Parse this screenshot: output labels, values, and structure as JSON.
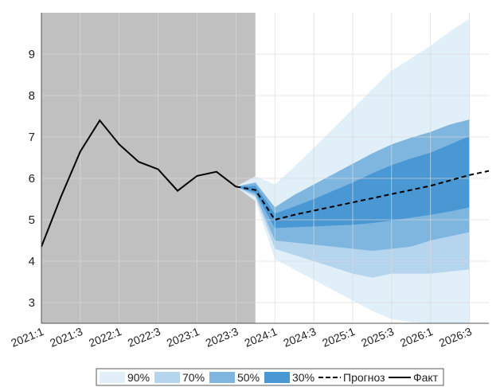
{
  "chart_data": {
    "type": "area",
    "categories": [
      "2021:1",
      "2021:2",
      "2021:3",
      "2021:4",
      "2022:1",
      "2022:2",
      "2022:3",
      "2022:4",
      "2023:1",
      "2023:2",
      "2023:3",
      "2023:4",
      "2024:1",
      "2024:2",
      "2024:3",
      "2024:4",
      "2025:1",
      "2025:2",
      "2025:3",
      "2025:4",
      "2026:1",
      "2026:2",
      "2026:3",
      "2026:4"
    ],
    "x_tick_labels": [
      "2021:1",
      "2021:3",
      "2022:1",
      "2022:3",
      "2023:1",
      "2023:3",
      "2024:1",
      "2024:3",
      "2025:1",
      "2025:3",
      "2026:1",
      "2026:3"
    ],
    "ylim": [
      2.5,
      10
    ],
    "y_ticks": [
      3,
      4,
      5,
      6,
      7,
      8,
      9
    ],
    "grid": true,
    "shaded_history_until": "2023:4",
    "series": [
      {
        "name": "Факт",
        "style": "solid",
        "values": [
          4.35,
          5.55,
          6.65,
          7.4,
          6.82,
          6.4,
          6.22,
          5.7,
          6.06,
          6.16,
          5.8,
          null,
          null,
          null,
          null,
          null,
          null,
          null,
          null,
          null,
          null,
          null,
          null,
          null
        ]
      },
      {
        "name": "Прогноз",
        "style": "dashed",
        "values": [
          null,
          null,
          null,
          null,
          null,
          null,
          null,
          null,
          null,
          null,
          5.8,
          5.72,
          5.0,
          5.12,
          5.22,
          5.32,
          5.42,
          5.52,
          5.62,
          5.72,
          5.82,
          5.95,
          6.08,
          6.18
        ]
      }
    ],
    "fan_bands": [
      {
        "name": "90%",
        "color": "#e1eff9",
        "lower": [
          5.8,
          5.45,
          4.05,
          3.8,
          3.55,
          3.3,
          3.05,
          2.8,
          2.6,
          2.53,
          2.5,
          2.5,
          2.5
        ],
        "upper": [
          5.8,
          6.05,
          5.85,
          6.28,
          6.74,
          7.2,
          7.68,
          8.15,
          8.6,
          8.9,
          9.2,
          9.55,
          9.85
        ]
      },
      {
        "name": "70%",
        "color": "#b5d5ee",
        "lower": [
          5.8,
          5.55,
          4.3,
          4.15,
          4.0,
          3.85,
          3.7,
          3.6,
          3.7,
          3.7,
          3.7,
          3.75,
          3.8
        ]
      },
      {
        "name": "50%",
        "color": "#7fb6e0",
        "lower": [
          5.8,
          5.6,
          4.5,
          4.45,
          4.4,
          4.35,
          4.3,
          4.25,
          4.3,
          4.35,
          4.5,
          4.6,
          4.7
        ],
        "upper": [
          5.8,
          5.9,
          5.3,
          5.6,
          5.85,
          6.1,
          6.35,
          6.6,
          6.82,
          6.98,
          7.12,
          7.3,
          7.42
        ]
      },
      {
        "name": "30%",
        "color": "#4a98d3",
        "lower": [
          5.8,
          5.65,
          4.8,
          4.82,
          4.84,
          4.86,
          4.88,
          4.92,
          4.98,
          5.05,
          5.12,
          5.2,
          5.3
        ],
        "upper": [
          5.8,
          5.82,
          5.15,
          5.32,
          5.5,
          5.7,
          5.9,
          6.12,
          6.32,
          6.48,
          6.62,
          6.82,
          7.02
        ]
      }
    ],
    "legend": {
      "placement": "bottom",
      "items": [
        {
          "label": "90%",
          "kind": "patch",
          "color": "#e1eff9"
        },
        {
          "label": "70%",
          "kind": "patch",
          "color": "#b5d5ee"
        },
        {
          "label": "50%",
          "kind": "patch",
          "color": "#7fb6e0"
        },
        {
          "label": "30%",
          "kind": "patch",
          "color": "#4a98d3"
        },
        {
          "label": "Прогноз",
          "kind": "dashed"
        },
        {
          "label": "Факт",
          "kind": "solid"
        }
      ]
    },
    "colors": {
      "history_shade": "#c0c0c0",
      "line": "#000000",
      "grid": "#d9d9d9"
    }
  }
}
